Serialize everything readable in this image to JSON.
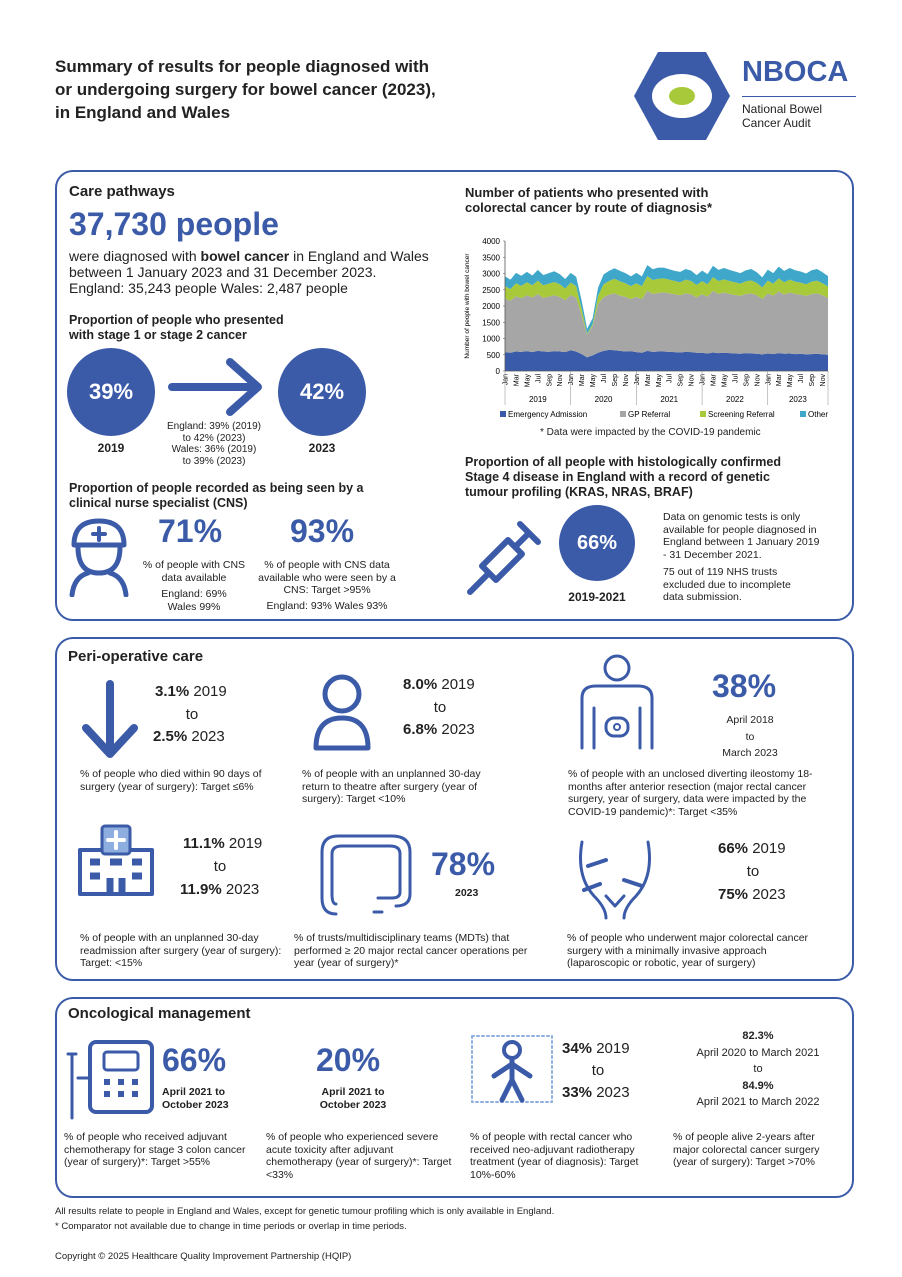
{
  "header": {
    "title_lines": [
      "Summary of results for people diagnosed with",
      "or undergoing surgery for bowel cancer (2023),",
      "in England and Wales"
    ],
    "logo": {
      "name": "NBOCA",
      "subtitle_lines": [
        "National Bowel",
        "Cancer Audit"
      ]
    }
  },
  "care_pathways": {
    "heading": "Care pathways",
    "headline": "37,730 people",
    "description": [
      "were diagnosed with ",
      "bowel cancer",
      " in England and Wales between 1 January 2023 and 31 December 2023."
    ],
    "breakdown": "England: 35,243 people Wales: 2,487 people",
    "stage": {
      "heading": "Proportion of people who presented with stage 1 or stage 2 cancer",
      "from": {
        "value": "39%",
        "year": "2019"
      },
      "to": {
        "value": "42%",
        "year": "2023"
      },
      "notes": [
        "England: 39% (2019)",
        "to 42% (2023)",
        "Wales: 36% (2019)",
        "to 39% (2023)"
      ]
    },
    "cns": {
      "heading": "Proportion of people recorded as being seen by a clinical nurse specialist (CNS)",
      "items": [
        {
          "value": "71%",
          "description": "% of people with CNS data available",
          "breakdown": [
            "England: 69%",
            "Wales 99%"
          ]
        },
        {
          "value": "93%",
          "description": "% of people with CNS data available who were seen by a CNS: Target >95%",
          "breakdown": [
            "England: 93% Wales 93%"
          ]
        }
      ]
    },
    "genetic": {
      "heading": "Proportion of all people with histologically confirmed Stage 4 disease in England with a record of genetic tumour profiling (KRAS, NRAS, BRAF)",
      "value": "66%",
      "period": "2019-2021",
      "notes": [
        "Data on genomic tests is only available for people diagnosed in England between 1 January 2019 - 31 December 2021.",
        "75 out of 119 NHS trusts excluded due to incomplete data submission."
      ]
    }
  },
  "chart_data": {
    "type": "area",
    "stacked": true,
    "title": "Number of patients who presented with colorectal cancer by route of diagnosis*",
    "y_label": "Number of people with bowel cancer",
    "categories": [
      "Jan",
      null,
      "Mar",
      null,
      "May",
      null,
      "Jul",
      null,
      "Sep",
      null,
      "Nov",
      null,
      "Jan",
      null,
      "Mar",
      null,
      "May",
      null,
      "Jul",
      null,
      "Sep",
      null,
      "Nov",
      null,
      "Jan",
      null,
      "Mar",
      null,
      "May",
      null,
      "Jul",
      null,
      "Sep",
      null,
      "Nov",
      null,
      "Jan",
      null,
      "Mar",
      null,
      "May",
      null,
      "Jul",
      null,
      "Sep",
      null,
      "Nov",
      null,
      "Jan",
      null,
      "Mar",
      null,
      "May",
      null,
      "Jul",
      null,
      "Sep",
      null,
      "Nov",
      null
    ],
    "year_labels": [
      "2019",
      "2020",
      "2021",
      "2022",
      "2023"
    ],
    "series": [
      {
        "name": "Emergency Admission",
        "color": "#3a5ba9",
        "values": [
          580,
          560,
          600,
          590,
          610,
          580,
          620,
          600,
          590,
          610,
          600,
          580,
          640,
          600,
          520,
          420,
          480,
          560,
          620,
          650,
          640,
          620,
          600,
          610,
          580,
          560,
          620,
          590,
          600,
          600,
          590,
          580,
          570,
          590,
          580,
          560,
          560,
          540,
          570,
          550,
          560,
          550,
          540,
          530,
          550,
          540,
          530,
          510,
          540,
          520,
          550,
          530,
          540,
          520,
          530,
          510,
          520,
          530,
          510,
          500
        ]
      },
      {
        "name": "GP Referral",
        "color": "#a6a6a6",
        "values": [
          1650,
          1600,
          1700,
          1650,
          1720,
          1680,
          1750,
          1650,
          1700,
          1720,
          1680,
          1600,
          1700,
          1650,
          1200,
          700,
          900,
          1500,
          1650,
          1700,
          1750,
          1700,
          1680,
          1600,
          1700,
          1650,
          1850,
          1780,
          1800,
          1820,
          1800,
          1780,
          1760,
          1800,
          1780,
          1700,
          1800,
          1750,
          1900,
          1820,
          1850,
          1820,
          1800,
          1780,
          1820,
          1850,
          1800,
          1700,
          1850,
          1800,
          1900,
          1820,
          1880,
          1850,
          1820,
          1800,
          1850,
          1860,
          1820,
          1750
        ]
      },
      {
        "name": "Screening Referral",
        "color": "#a8c93a",
        "values": [
          380,
          360,
          400,
          380,
          400,
          380,
          410,
          390,
          400,
          410,
          390,
          360,
          380,
          360,
          200,
          30,
          60,
          250,
          400,
          420,
          450,
          440,
          420,
          400,
          420,
          400,
          450,
          430,
          440,
          430,
          420,
          410,
          400,
          420,
          410,
          390,
          400,
          380,
          420,
          400,
          410,
          400,
          390,
          380,
          390,
          400,
          380,
          360,
          390,
          370,
          400,
          380,
          390,
          380,
          370,
          360,
          380,
          390,
          370,
          350
        ]
      },
      {
        "name": "Other",
        "color": "#3fa7c9",
        "values": [
          300,
          290,
          320,
          310,
          320,
          300,
          330,
          310,
          320,
          330,
          310,
          290,
          300,
          290,
          250,
          150,
          180,
          250,
          300,
          310,
          320,
          320,
          310,
          300,
          320,
          300,
          340,
          330,
          340,
          330,
          320,
          310,
          320,
          330,
          320,
          300,
          330,
          310,
          350,
          340,
          350,
          340,
          330,
          320,
          340,
          350,
          330,
          310,
          340,
          320,
          360,
          350,
          360,
          350,
          340,
          330,
          350,
          360,
          340,
          320
        ]
      }
    ],
    "ylim": [
      0,
      4000
    ],
    "yticks": [
      0,
      500,
      1000,
      1500,
      2000,
      2500,
      3000,
      3500,
      4000
    ],
    "grid": false,
    "legend": "bottom",
    "note": "* Data were impacted by the COVID-19 pandemic"
  },
  "peri_operative": {
    "heading": "Peri-operative care",
    "items": [
      {
        "from": {
          "value": "3.1%",
          "year": "2019"
        },
        "to": "to",
        "until": {
          "value": "2.5%",
          "year": "2023"
        },
        "description": "% of people who died within 90 days of surgery (year of surgery): Target ≤6%"
      },
      {
        "from": {
          "value": "8.0%",
          "year": "2019"
        },
        "to": "to",
        "until": {
          "value": "6.8%",
          "year": "2023"
        },
        "description": "% of people with an unplanned 30-day return to theatre after surgery (year of surgery): Target <10%"
      },
      {
        "value": "38%",
        "period": [
          "April 2018",
          "to",
          "March 2023"
        ],
        "description": "% of people with an unclosed diverting ileostomy 18-months after anterior resection (major rectal cancer surgery, year of surgery, data were impacted by the COVID-19 pandemic)*: Target <35%"
      },
      {
        "from": {
          "value": "11.1%",
          "year": "2019"
        },
        "to": "to",
        "until": {
          "value": "11.9%",
          "year": "2023"
        },
        "description": "% of people with an unplanned 30-day readmission after surgery (year of surgery): Target: <15%"
      },
      {
        "value": "78%",
        "year": "2023",
        "description": "% of trusts/multidisciplinary teams (MDTs) that performed ≥ 20 major rectal cancer operations per year (year of surgery)*"
      },
      {
        "from": {
          "value": "66%",
          "year": "2019"
        },
        "to": "to",
        "until": {
          "value": "75%",
          "year": "2023"
        },
        "description": "% of people who underwent major colorectal cancer surgery with a minimally invasive approach (laparoscopic or robotic, year of surgery)"
      }
    ]
  },
  "oncological": {
    "heading": "Oncological management",
    "items": [
      {
        "value": "66%",
        "period": [
          "April 2021 to",
          "October 2023"
        ],
        "description": "% of people who received adjuvant chemotherapy for stage 3 colon cancer (year of surgery)*: Target >55%"
      },
      {
        "value": "20%",
        "period": [
          "April 2021 to",
          "October 2023"
        ],
        "description": "% of people who experienced severe acute toxicity after adjuvant chemotherapy (year of surgery)*: Target <33%"
      },
      {
        "from": {
          "value": "34%",
          "year": "2019"
        },
        "to": "to",
        "until": {
          "value": "33%",
          "year": "2023"
        },
        "description": "% of people with rectal cancer who received neo-adjuvant radiotherapy treatment (year of diagnosis): Target 10%-60%"
      },
      {
        "from": {
          "value": "82.3%",
          "period": "April 2020 to March 2021"
        },
        "to": "to",
        "until": {
          "value": "84.9%",
          "period": "April 2021 to March 2022"
        },
        "description": "% of people alive 2-years after major colorectal cancer surgery (year of surgery): Target >70%"
      }
    ]
  },
  "footer": {
    "notes": [
      "All results relate to people in England and Wales, except for genetic tumour profiling which is only available in England.",
      "* Comparator not available due to change in time periods or overlap in time periods."
    ],
    "copyright": "Copyright © 2025 Healthcare Quality Improvement Partnership (HQIP)"
  }
}
